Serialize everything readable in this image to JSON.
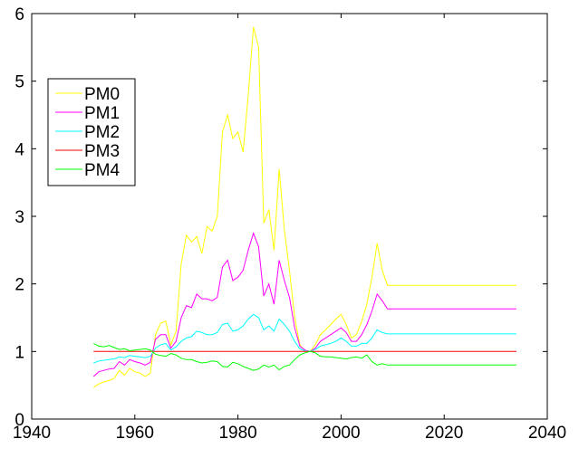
{
  "chart_data": {
    "type": "line",
    "title": "",
    "xlabel": "",
    "ylabel": "",
    "xlim": [
      1940,
      2040
    ],
    "ylim": [
      0,
      6
    ],
    "xticks": [
      1940,
      1960,
      1980,
      2000,
      2020,
      2040
    ],
    "yticks": [
      0,
      1,
      2,
      3,
      4,
      5,
      6
    ],
    "grid": false,
    "legend_position": "upper-left",
    "series": [
      {
        "name": "PM0",
        "color": "#ffff00",
        "x": [
          1952,
          1953,
          1954,
          1955,
          1956,
          1957,
          1958,
          1959,
          1960,
          1961,
          1962,
          1963,
          1964,
          1965,
          1966,
          1967,
          1968,
          1969,
          1970,
          1971,
          1972,
          1973,
          1974,
          1975,
          1976,
          1977,
          1978,
          1979,
          1980,
          1981,
          1982,
          1983,
          1984,
          1985,
          1986,
          1987,
          1988,
          1989,
          1990,
          1991,
          1992,
          1993,
          1994,
          1995,
          1996,
          1997,
          1998,
          1999,
          2000,
          2001,
          2002,
          2003,
          2004,
          2005,
          2006,
          2007,
          2008,
          2009,
          2010,
          2015,
          2020,
          2025,
          2030,
          2034
        ],
        "y": [
          0.47,
          0.52,
          0.55,
          0.57,
          0.6,
          0.72,
          0.65,
          0.75,
          0.7,
          0.68,
          0.63,
          0.68,
          1.25,
          1.42,
          1.45,
          1.1,
          1.3,
          2.3,
          2.72,
          2.62,
          2.7,
          2.45,
          2.85,
          2.78,
          3.0,
          4.25,
          4.5,
          4.15,
          4.25,
          3.95,
          4.8,
          5.8,
          5.5,
          2.9,
          3.1,
          2.5,
          3.7,
          2.8,
          2.2,
          1.5,
          1.1,
          1.0,
          1.0,
          1.1,
          1.25,
          1.32,
          1.4,
          1.48,
          1.55,
          1.4,
          1.2,
          1.25,
          1.45,
          1.7,
          2.1,
          2.6,
          2.2,
          1.98,
          1.98,
          1.98,
          1.98,
          1.98,
          1.98,
          1.98
        ]
      },
      {
        "name": "PM1",
        "color": "#ff00ff",
        "x": [
          1952,
          1953,
          1954,
          1955,
          1956,
          1957,
          1958,
          1959,
          1960,
          1961,
          1962,
          1963,
          1964,
          1965,
          1966,
          1967,
          1968,
          1969,
          1970,
          1971,
          1972,
          1973,
          1974,
          1975,
          1976,
          1977,
          1978,
          1979,
          1980,
          1981,
          1982,
          1983,
          1984,
          1985,
          1986,
          1987,
          1988,
          1989,
          1990,
          1991,
          1992,
          1993,
          1994,
          1995,
          1996,
          1997,
          1998,
          1999,
          2000,
          2001,
          2002,
          2003,
          2004,
          2005,
          2006,
          2007,
          2008,
          2009,
          2010,
          2015,
          2020,
          2025,
          2030,
          2034
        ],
        "y": [
          0.63,
          0.7,
          0.72,
          0.74,
          0.75,
          0.85,
          0.8,
          0.88,
          0.85,
          0.83,
          0.8,
          0.84,
          1.18,
          1.25,
          1.25,
          1.05,
          1.15,
          1.5,
          1.68,
          1.65,
          1.85,
          1.78,
          1.78,
          1.75,
          1.8,
          2.25,
          2.35,
          2.05,
          2.1,
          2.2,
          2.5,
          2.75,
          2.55,
          1.82,
          2.0,
          1.7,
          2.35,
          2.05,
          1.8,
          1.35,
          1.08,
          1.02,
          1.0,
          1.05,
          1.15,
          1.2,
          1.25,
          1.3,
          1.35,
          1.28,
          1.15,
          1.15,
          1.25,
          1.4,
          1.6,
          1.85,
          1.75,
          1.63,
          1.63,
          1.63,
          1.63,
          1.63,
          1.63,
          1.63
        ]
      },
      {
        "name": "PM2",
        "color": "#00ffff",
        "x": [
          1952,
          1953,
          1954,
          1955,
          1956,
          1957,
          1958,
          1959,
          1960,
          1961,
          1962,
          1963,
          1964,
          1965,
          1966,
          1967,
          1968,
          1969,
          1970,
          1971,
          1972,
          1973,
          1974,
          1975,
          1976,
          1977,
          1978,
          1979,
          1980,
          1981,
          1982,
          1983,
          1984,
          1985,
          1986,
          1987,
          1988,
          1989,
          1990,
          1991,
          1992,
          1993,
          1994,
          1995,
          1996,
          1997,
          1998,
          1999,
          2000,
          2001,
          2002,
          2003,
          2004,
          2005,
          2006,
          2007,
          2008,
          2009,
          2010,
          2015,
          2020,
          2025,
          2030,
          2034
        ],
        "y": [
          0.83,
          0.86,
          0.87,
          0.88,
          0.89,
          0.92,
          0.91,
          0.94,
          0.93,
          0.92,
          0.91,
          0.93,
          1.05,
          1.1,
          1.12,
          1.02,
          1.07,
          1.15,
          1.2,
          1.22,
          1.3,
          1.28,
          1.25,
          1.25,
          1.28,
          1.4,
          1.42,
          1.3,
          1.32,
          1.38,
          1.48,
          1.55,
          1.5,
          1.32,
          1.38,
          1.3,
          1.48,
          1.4,
          1.3,
          1.15,
          1.04,
          1.01,
          1.0,
          1.03,
          1.08,
          1.1,
          1.12,
          1.15,
          1.2,
          1.15,
          1.08,
          1.08,
          1.12,
          1.12,
          1.2,
          1.32,
          1.28,
          1.26,
          1.26,
          1.26,
          1.26,
          1.26,
          1.26,
          1.26
        ]
      },
      {
        "name": "PM3",
        "color": "#ff0000",
        "x": [
          1952,
          2034
        ],
        "y": [
          1.0,
          1.0
        ]
      },
      {
        "name": "PM4",
        "color": "#00ff00",
        "x": [
          1952,
          1953,
          1954,
          1955,
          1956,
          1957,
          1958,
          1959,
          1960,
          1961,
          1962,
          1963,
          1964,
          1965,
          1966,
          1967,
          1968,
          1969,
          1970,
          1971,
          1972,
          1973,
          1974,
          1975,
          1976,
          1977,
          1978,
          1979,
          1980,
          1981,
          1982,
          1983,
          1984,
          1985,
          1986,
          1987,
          1988,
          1989,
          1990,
          1991,
          1992,
          1993,
          1994,
          1995,
          1996,
          1997,
          1998,
          1999,
          2000,
          2001,
          2002,
          2003,
          2004,
          2005,
          2006,
          2007,
          2008,
          2009,
          2010,
          2015,
          2020,
          2025,
          2030,
          2034
        ],
        "y": [
          1.12,
          1.08,
          1.07,
          1.09,
          1.06,
          1.03,
          1.04,
          1.01,
          1.02,
          1.03,
          1.04,
          1.02,
          0.96,
          0.94,
          0.93,
          0.97,
          0.95,
          0.9,
          0.88,
          0.88,
          0.85,
          0.83,
          0.84,
          0.86,
          0.85,
          0.78,
          0.77,
          0.84,
          0.82,
          0.78,
          0.75,
          0.72,
          0.74,
          0.8,
          0.77,
          0.8,
          0.73,
          0.78,
          0.8,
          0.88,
          0.95,
          0.98,
          1.0,
          0.98,
          0.93,
          0.92,
          0.92,
          0.91,
          0.9,
          0.89,
          0.91,
          0.92,
          0.9,
          0.95,
          0.85,
          0.8,
          0.82,
          0.8,
          0.8,
          0.8,
          0.8,
          0.8,
          0.8,
          0.8
        ]
      }
    ]
  }
}
